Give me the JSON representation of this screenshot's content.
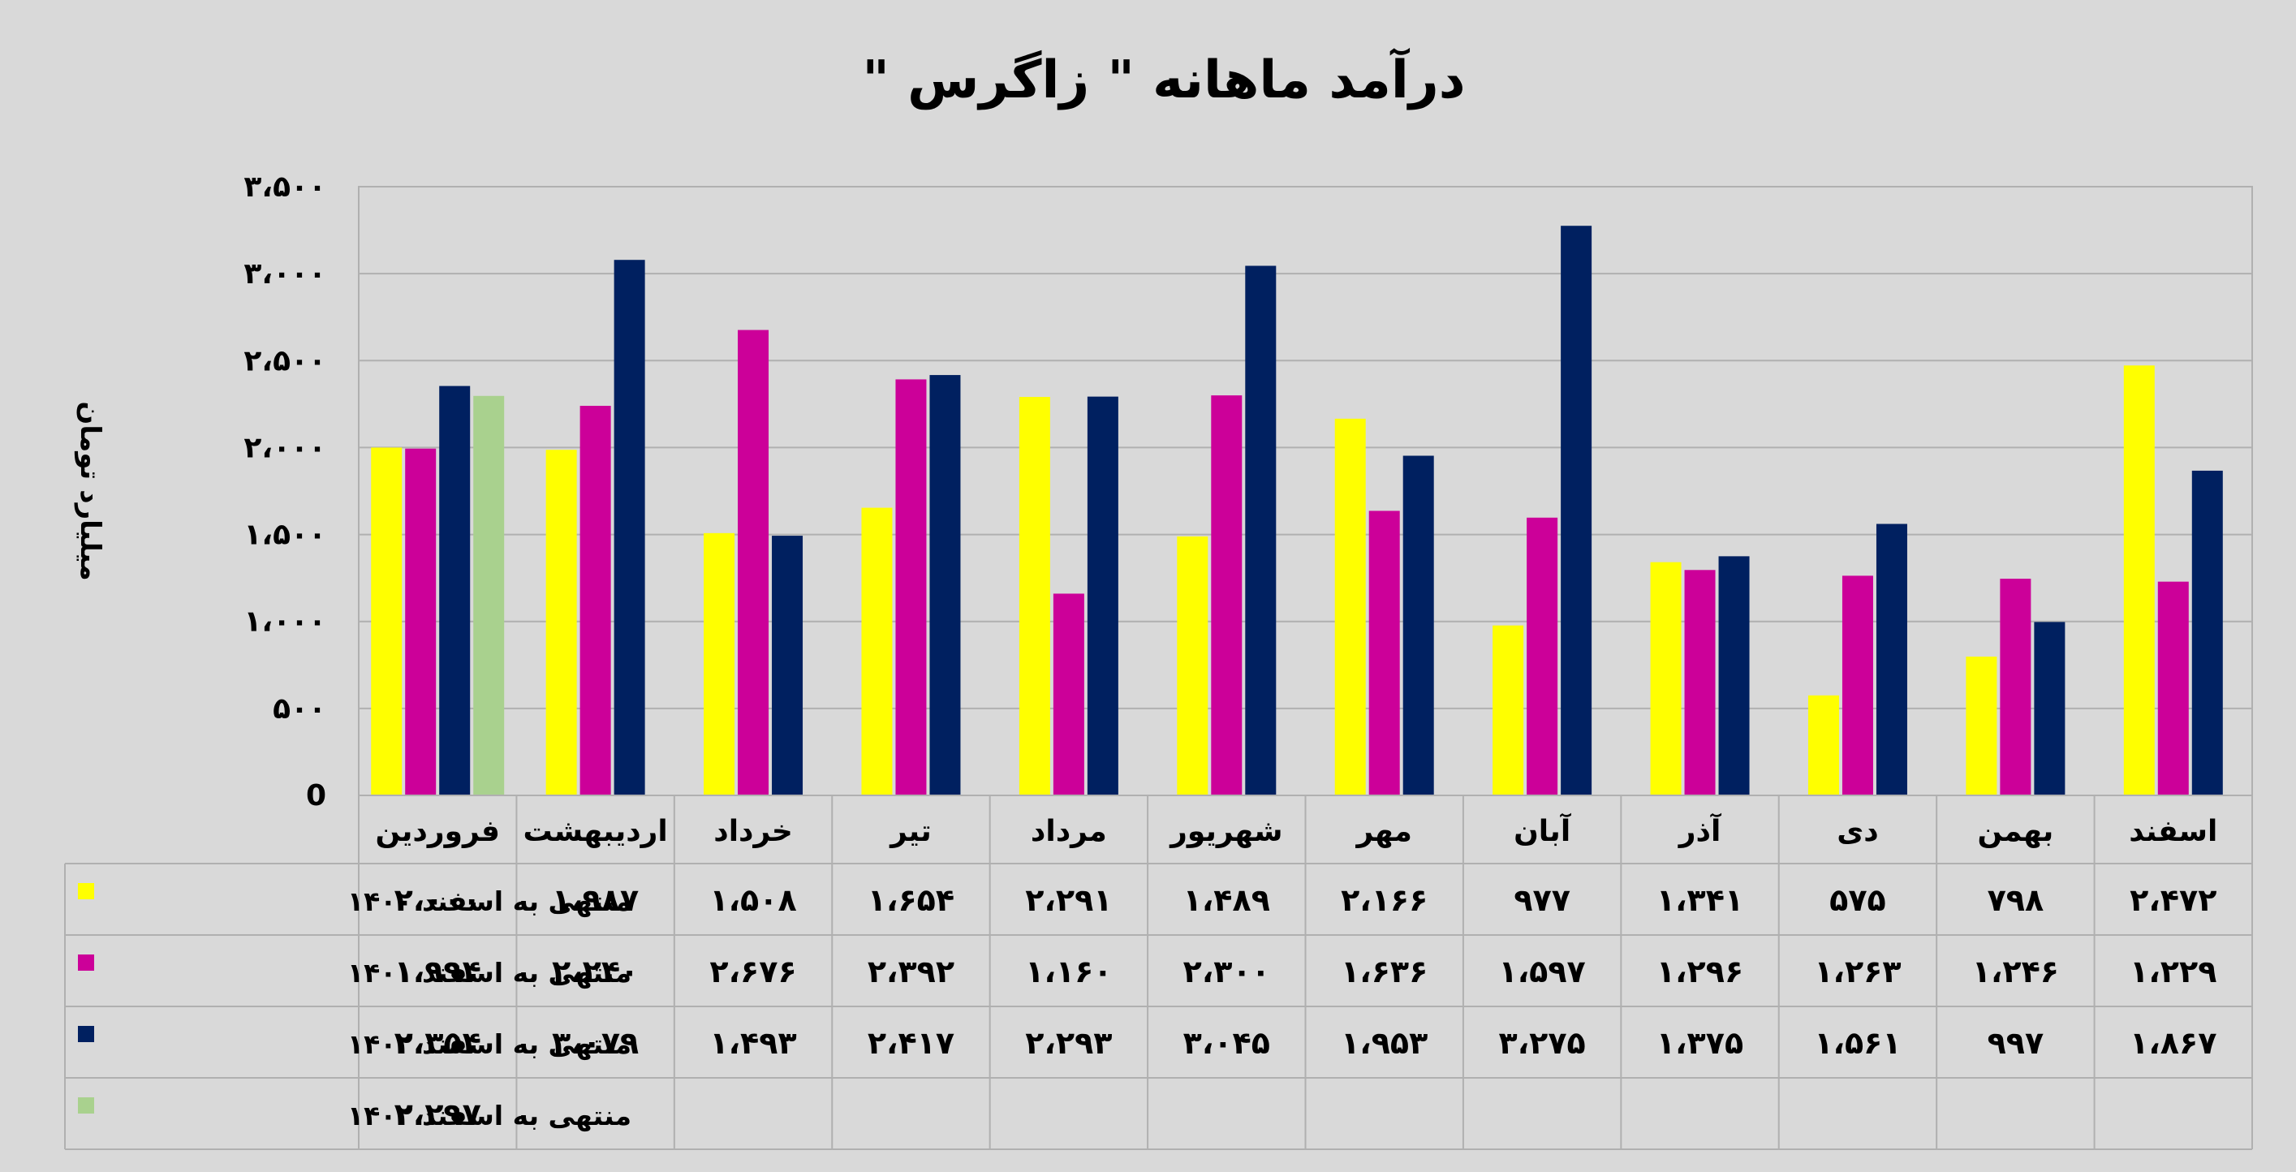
{
  "chart_data": {
    "type": "bar",
    "title": "درآمد ماهانه \" زاگرس \"",
    "ylabel": "میلیارد تومان",
    "ylim": [
      0,
      3500
    ],
    "yticks": [
      0,
      500,
      1000,
      1500,
      2000,
      2500,
      3000,
      3500
    ],
    "ytick_labels": [
      "0",
      "۵۰۰",
      "۱،۰۰۰",
      "۱،۵۰۰",
      "۲،۰۰۰",
      "۲،۵۰۰",
      "۳،۰۰۰",
      "۳،۵۰۰"
    ],
    "categories": [
      "فروردین",
      "اردیبهشت",
      "خرداد",
      "تیر",
      "مرداد",
      "شهریور",
      "مهر",
      "آبان",
      "آذر",
      "دی",
      "بهمن",
      "اسفند"
    ],
    "grid": true,
    "legend_position": "data-table-left",
    "series": [
      {
        "name": "منتهی به اسفند ۱۴۰۰",
        "color": "#ffff00",
        "values": [
          2000,
          1987,
          1508,
          1654,
          2291,
          1489,
          2166,
          977,
          1341,
          575,
          798,
          2472
        ],
        "labels": [
          "۲،۰۰۰",
          "۱،۹۸۷",
          "۱،۵۰۸",
          "۱،۶۵۴",
          "۲،۲۹۱",
          "۱،۴۸۹",
          "۲،۱۶۶",
          "۹۷۷",
          "۱،۳۴۱",
          "۵۷۵",
          "۷۹۸",
          "۲،۴۷۲"
        ]
      },
      {
        "name": "منتهی به اسفند ۱۴۰۱",
        "color": "#cc0099",
        "values": [
          1994,
          2240,
          2676,
          2392,
          1160,
          2300,
          1636,
          1597,
          1296,
          1263,
          1246,
          1229
        ],
        "labels": [
          "۱،۹۹۴",
          "۲،۲۴۰",
          "۲،۶۷۶",
          "۲،۳۹۲",
          "۱،۱۶۰",
          "۲،۳۰۰",
          "۱،۶۳۶",
          "۱،۵۹۷",
          "۱،۲۹۶",
          "۱،۲۶۳",
          "۱،۲۴۶",
          "۱،۲۲۹"
        ]
      },
      {
        "name": "منتهی به اسفند ۱۴۰۲",
        "color": "#002060",
        "values": [
          2354,
          3079,
          1493,
          2417,
          2293,
          3045,
          1953,
          3275,
          1375,
          1561,
          997,
          1867
        ],
        "labels": [
          "۲،۳۵۴",
          "۳،۰۷۹",
          "۱،۴۹۳",
          "۲،۴۱۷",
          "۲،۲۹۳",
          "۳،۰۴۵",
          "۱،۹۵۳",
          "۳،۲۷۵",
          "۱،۳۷۵",
          "۱،۵۶۱",
          "۹۹۷",
          "۱،۸۶۷"
        ]
      },
      {
        "name": "منتهی به اسفند ۱۴۰۲",
        "color": "#a9d18e",
        "values": [
          2297,
          null,
          null,
          null,
          null,
          null,
          null,
          null,
          null,
          null,
          null,
          null
        ],
        "labels": [
          "۲،۲۹۷",
          "",
          "",
          "",
          "",
          "",
          "",
          "",
          "",
          "",
          "",
          ""
        ]
      }
    ]
  }
}
